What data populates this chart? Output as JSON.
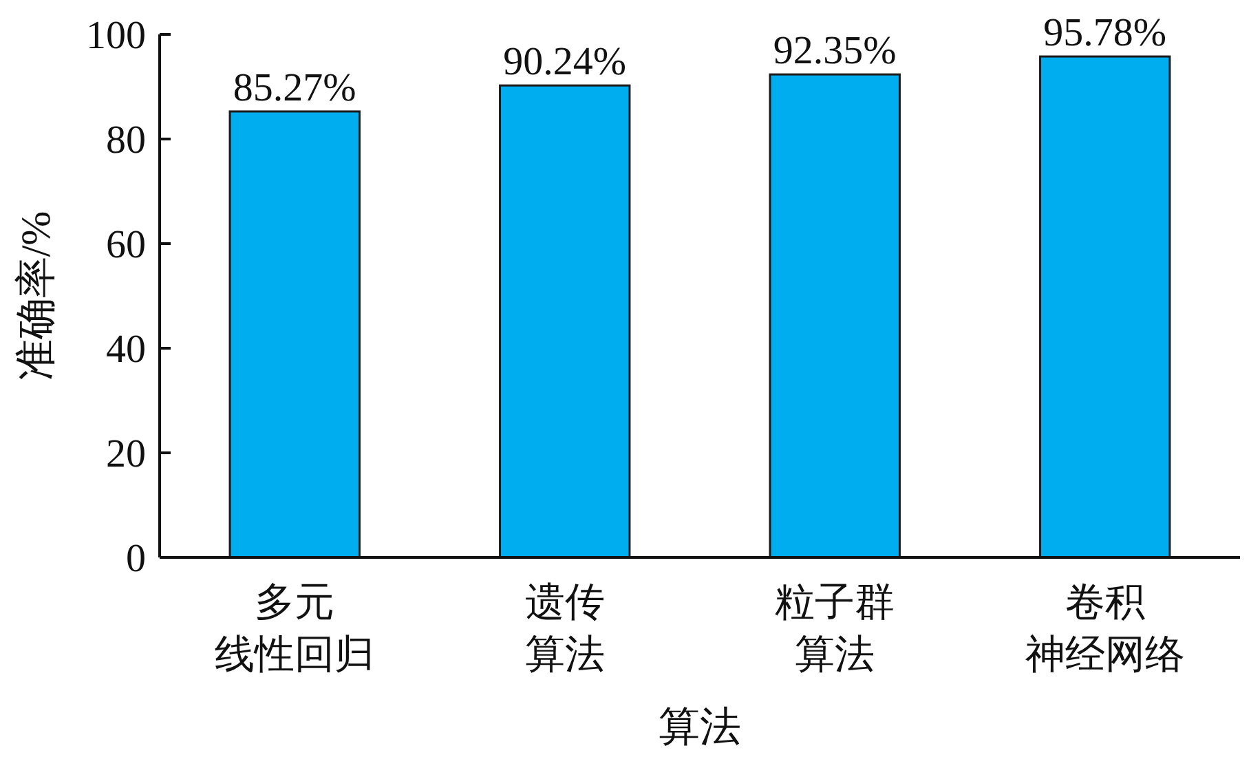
{
  "chart_data": {
    "type": "bar",
    "xlabel": "算法",
    "ylabel": "准确率/%",
    "categories": [
      "多元线性回归",
      "遗传算法",
      "粒子群算法",
      "卷积神经网络"
    ],
    "values": [
      85.27,
      90.24,
      92.35,
      95.78
    ],
    "value_labels": [
      "85.27%",
      "90.24%",
      "92.35%",
      "95.78%"
    ],
    "color": "#00aeef",
    "ylim": [
      0,
      100
    ],
    "yticks": [
      0,
      20,
      40,
      60,
      80,
      100
    ],
    "grid": false
  }
}
